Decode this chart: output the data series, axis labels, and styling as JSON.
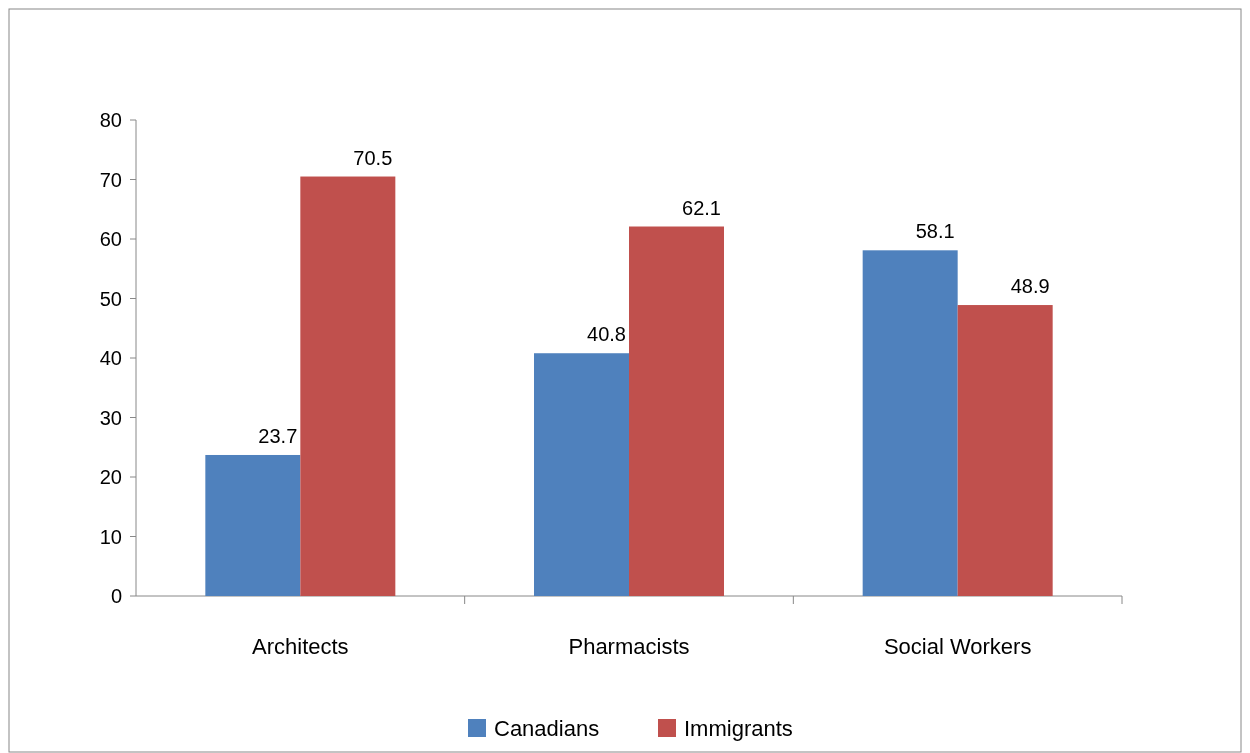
{
  "chart_data": {
    "type": "bar",
    "categories": [
      "Architects",
      "Pharmacists",
      "Social Workers"
    ],
    "series": [
      {
        "name": "Canadians",
        "color": "#4f81bd",
        "values": [
          23.7,
          40.8,
          58.1
        ]
      },
      {
        "name": "Immigrants",
        "color": "#c0504d",
        "values": [
          70.5,
          62.1,
          48.9
        ]
      }
    ],
    "ylim": [
      0,
      80
    ],
    "yticks": [
      0,
      10,
      20,
      30,
      40,
      50,
      60,
      70,
      80
    ],
    "data_labels": true,
    "legend": "bottom",
    "grid": false
  }
}
